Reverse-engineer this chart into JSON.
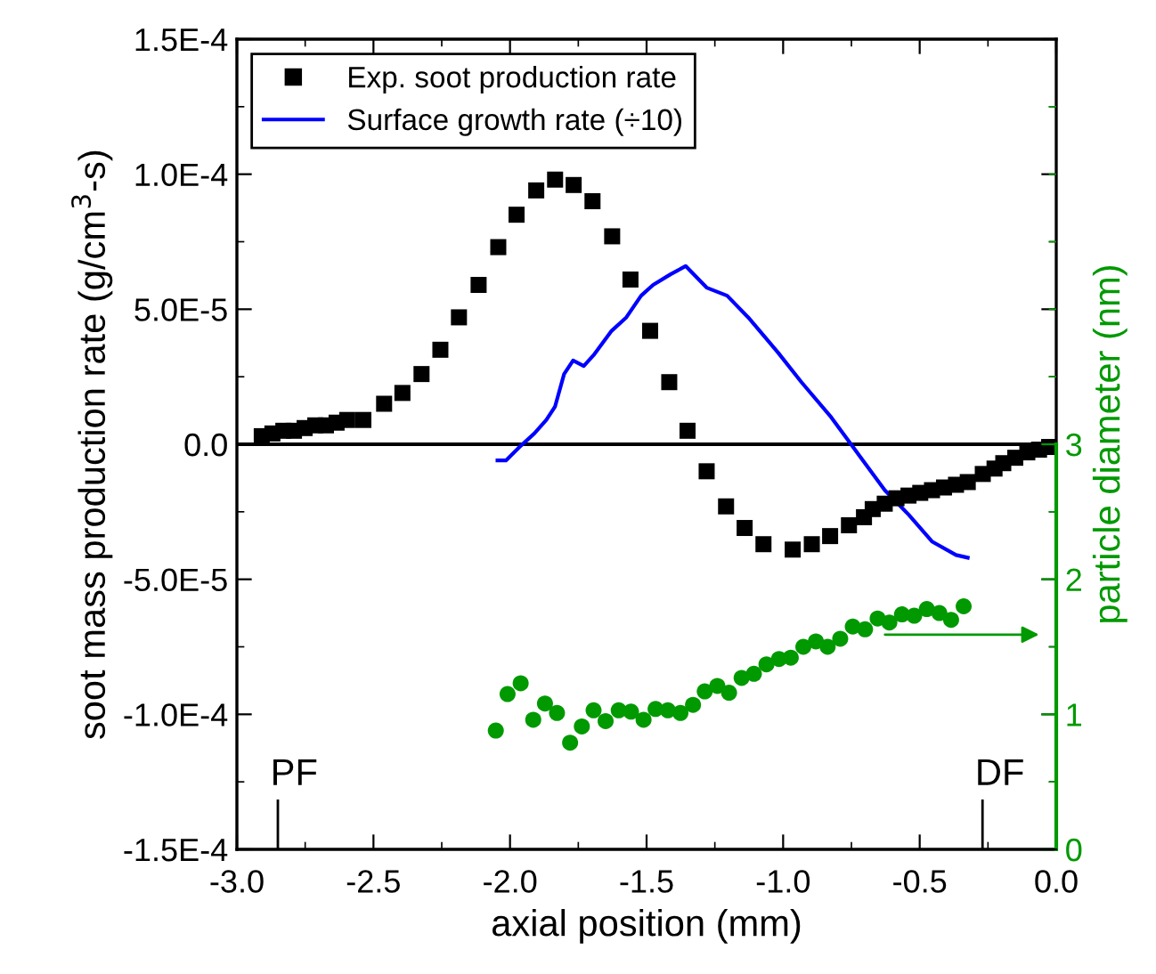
{
  "chart_data": {
    "type": "scatter",
    "xlabel": "axial position (mm)",
    "ylabel": "soot mass production rate (g/cm$^{3}$-s)",
    "y2label": "particle diameter (nm)",
    "xlim": [
      -3.0,
      0.0
    ],
    "xticks": [
      {
        "value": -3.0,
        "label": "-3.0"
      },
      {
        "value": -2.5,
        "label": "-2.5"
      },
      {
        "value": -2.0,
        "label": "-2.0"
      },
      {
        "value": -1.5,
        "label": "-1.5"
      },
      {
        "value": -1.0,
        "label": "-1.0"
      },
      {
        "value": -0.5,
        "label": "-0.5"
      },
      {
        "value": 0.0,
        "label": "0.0"
      }
    ],
    "ylim": [
      -0.00015,
      0.00015
    ],
    "yticks": [
      {
        "value": -0.00015,
        "label": "-1.5E-4"
      },
      {
        "value": -0.0001,
        "label": "-1.0E-4"
      },
      {
        "value": -5e-05,
        "label": "-5.0E-5"
      },
      {
        "value": 0.0,
        "label": "0.0"
      },
      {
        "value": 5e-05,
        "label": "5.0E-5"
      },
      {
        "value": 0.0001,
        "label": "1.0E-4"
      },
      {
        "value": 0.00015,
        "label": "1.5E-4"
      }
    ],
    "y2lim": [
      0,
      6
    ],
    "y2ticks": [
      0,
      1,
      2,
      3
    ],
    "grid": false,
    "legend": "top left",
    "ref_lines": [
      {
        "axis": "y",
        "value": 0,
        "color": "#000000",
        "line_style": "solid"
      },
      {
        "axis": "x",
        "value": -2.85,
        "label": "PF",
        "color": "#000000",
        "line_style": "solid"
      },
      {
        "axis": "x",
        "value": -0.27,
        "label": "DF",
        "color": "#000000",
        "line_style": "solid"
      }
    ],
    "series": [
      {
        "name": "Exp. soot production rate",
        "marker": "square",
        "color": "#000000",
        "x": [
          -2.909,
          -2.87,
          -2.83,
          -2.791,
          -2.752,
          -2.713,
          -2.674,
          -2.635,
          -2.596,
          -2.537,
          -2.461,
          -2.394,
          -2.324,
          -2.255,
          -2.187,
          -2.115,
          -2.043,
          -1.976,
          -1.904,
          -1.835,
          -1.767,
          -1.698,
          -1.626,
          -1.559,
          -1.487,
          -1.417,
          -1.35,
          -1.28,
          -1.209,
          -1.141,
          -1.072,
          -0.965,
          -0.895,
          -0.828,
          -0.759,
          -0.704,
          -0.672,
          -0.628,
          -0.585,
          -0.541,
          -0.498,
          -0.455,
          -0.411,
          -0.367,
          -0.324,
          -0.269,
          -0.226,
          -0.194,
          -0.15,
          -0.106,
          -0.063,
          -0.026
        ],
        "values": [
          3e-06,
          4e-06,
          5e-06,
          5e-06,
          6e-06,
          7e-06,
          7e-06,
          8e-06,
          9e-06,
          9e-06,
          1.5e-05,
          1.9e-05,
          2.6e-05,
          3.5e-05,
          4.7e-05,
          5.9e-05,
          7.3e-05,
          8.5e-05,
          9.4e-05,
          9.8e-05,
          9.6e-05,
          9e-05,
          7.7e-05,
          6.1e-05,
          4.2e-05,
          2.3e-05,
          5e-06,
          -1e-05,
          -2.3e-05,
          -3.1e-05,
          -3.7e-05,
          -3.9e-05,
          -3.7e-05,
          -3.4e-05,
          -3e-05,
          -2.7e-05,
          -2.4e-05,
          -2.2e-05,
          -2e-05,
          -1.9e-05,
          -1.8e-05,
          -1.7e-05,
          -1.6e-05,
          -1.5e-05,
          -1.4e-05,
          -1.1e-05,
          -9e-06,
          -7e-06,
          -5e-06,
          -3e-06,
          -2e-06,
          -1e-06
        ]
      },
      {
        "name": "Surface growth rate (÷10)",
        "type": "line",
        "marker": "none",
        "line_style": "solid",
        "color": "#0000ff",
        "x": [
          -2.046,
          -2.015,
          -1.965,
          -1.911,
          -1.867,
          -1.835,
          -1.802,
          -1.769,
          -1.73,
          -1.694,
          -1.628,
          -1.574,
          -1.52,
          -1.476,
          -1.411,
          -1.357,
          -1.28,
          -1.205,
          -1.128,
          -1.019,
          -0.933,
          -0.824,
          -0.737,
          -0.628,
          -0.541,
          -0.455,
          -0.367,
          -0.324
        ],
        "values": [
          -6e-06,
          -6e-06,
          -1e-06,
          4e-06,
          9e-06,
          1.4e-05,
          2.6e-05,
          3.1e-05,
          2.9e-05,
          3.3e-05,
          4.2e-05,
          4.7e-05,
          5.5e-05,
          5.9e-05,
          6.3e-05,
          6.6e-05,
          5.8e-05,
          5.5e-05,
          4.7e-05,
          3.4e-05,
          2.3e-05,
          1e-05,
          -2e-06,
          -1.7e-05,
          -2.6e-05,
          -3.6e-05,
          -4.1e-05,
          -4.2e-05
        ]
      },
      {
        "marker": "circle",
        "color": "#009900",
        "axis": "y2",
        "x": [
          -2.052,
          -2.009,
          -1.961,
          -1.915,
          -1.872,
          -1.828,
          -1.78,
          -1.737,
          -1.694,
          -1.65,
          -1.602,
          -1.557,
          -1.511,
          -1.467,
          -1.422,
          -1.376,
          -1.33,
          -1.287,
          -1.241,
          -1.198,
          -1.152,
          -1.107,
          -1.061,
          -1.015,
          -0.972,
          -0.926,
          -0.88,
          -0.837,
          -0.791,
          -0.745,
          -0.7,
          -0.654,
          -0.611,
          -0.565,
          -0.52,
          -0.474,
          -0.428,
          -0.385,
          -0.339
        ],
        "values": [
          0.88,
          1.15,
          1.23,
          0.96,
          1.08,
          1.01,
          0.79,
          0.91,
          1.03,
          0.95,
          1.03,
          1.02,
          0.96,
          1.04,
          1.03,
          1.01,
          1.07,
          1.17,
          1.21,
          1.16,
          1.27,
          1.3,
          1.37,
          1.41,
          1.42,
          1.5,
          1.54,
          1.5,
          1.56,
          1.65,
          1.63,
          1.71,
          1.68,
          1.74,
          1.73,
          1.78,
          1.75,
          1.7,
          1.8
        ]
      }
    ]
  }
}
